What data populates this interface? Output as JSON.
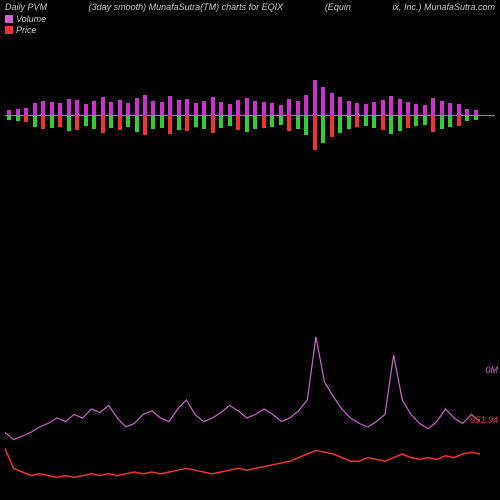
{
  "header": {
    "left": "Daily PVM",
    "center_a": "(3day smooth) MunafaSutra(TM) charts for EQIX",
    "center_b": "(Equin",
    "right": "ix, Inc.) MunafaSutra.com"
  },
  "legend": {
    "volume": {
      "label": "Volume",
      "color": "#cc66cc"
    },
    "price": {
      "label": "Price",
      "color": "#ee3333"
    }
  },
  "colors": {
    "bg": "#000000",
    "axis": "#888888",
    "vol_bar": "#cc33cc",
    "up_bar": "#33cc33",
    "down_bar": "#ee3333",
    "vol_line": "#cc66cc",
    "price_line": "#ee3333"
  },
  "labels": {
    "vol_zero": "0M",
    "price_current": "951.94"
  },
  "volume_chart": {
    "max": 45,
    "bars": [
      {
        "v": 5,
        "d": 1
      },
      {
        "v": 6,
        "d": 1
      },
      {
        "v": 7,
        "d": -1
      },
      {
        "v": 12,
        "d": 1
      },
      {
        "v": 14,
        "d": -1
      },
      {
        "v": 13,
        "d": 1
      },
      {
        "v": 12,
        "d": -1
      },
      {
        "v": 16,
        "d": 1
      },
      {
        "v": 15,
        "d": -1
      },
      {
        "v": 11,
        "d": 1
      },
      {
        "v": 14,
        "d": 1
      },
      {
        "v": 18,
        "d": -1
      },
      {
        "v": 13,
        "d": 1
      },
      {
        "v": 15,
        "d": -1
      },
      {
        "v": 12,
        "d": 1
      },
      {
        "v": 17,
        "d": 1
      },
      {
        "v": 20,
        "d": -1
      },
      {
        "v": 14,
        "d": 1
      },
      {
        "v": 13,
        "d": 1
      },
      {
        "v": 19,
        "d": -1
      },
      {
        "v": 15,
        "d": 1
      },
      {
        "v": 16,
        "d": -1
      },
      {
        "v": 12,
        "d": 1
      },
      {
        "v": 14,
        "d": 1
      },
      {
        "v": 18,
        "d": -1
      },
      {
        "v": 13,
        "d": 1
      },
      {
        "v": 11,
        "d": 1
      },
      {
        "v": 15,
        "d": -1
      },
      {
        "v": 17,
        "d": 1
      },
      {
        "v": 14,
        "d": 1
      },
      {
        "v": 13,
        "d": -1
      },
      {
        "v": 12,
        "d": 1
      },
      {
        "v": 10,
        "d": 1
      },
      {
        "v": 16,
        "d": -1
      },
      {
        "v": 14,
        "d": 1
      },
      {
        "v": 20,
        "d": 1
      },
      {
        "v": 35,
        "d": -1
      },
      {
        "v": 28,
        "d": 1
      },
      {
        "v": 22,
        "d": -1
      },
      {
        "v": 18,
        "d": 1
      },
      {
        "v": 14,
        "d": 1
      },
      {
        "v": 12,
        "d": -1
      },
      {
        "v": 11,
        "d": 1
      },
      {
        "v": 13,
        "d": 1
      },
      {
        "v": 15,
        "d": -1
      },
      {
        "v": 19,
        "d": 1
      },
      {
        "v": 16,
        "d": 1
      },
      {
        "v": 13,
        "d": -1
      },
      {
        "v": 11,
        "d": 1
      },
      {
        "v": 10,
        "d": 1
      },
      {
        "v": 17,
        "d": -1
      },
      {
        "v": 14,
        "d": 1
      },
      {
        "v": 12,
        "d": 1
      },
      {
        "v": 11,
        "d": -1
      },
      {
        "v": 6,
        "d": 1
      },
      {
        "v": 5,
        "d": 1
      }
    ]
  },
  "volume_line": {
    "ymin": 0,
    "ymax": 100,
    "points": [
      68,
      72,
      70,
      68,
      65,
      63,
      60,
      62,
      58,
      60,
      55,
      57,
      53,
      60,
      65,
      63,
      58,
      56,
      60,
      62,
      55,
      50,
      58,
      62,
      60,
      57,
      53,
      56,
      60,
      58,
      55,
      58,
      62,
      60,
      56,
      50,
      15,
      40,
      48,
      55,
      60,
      63,
      65,
      62,
      58,
      25,
      50,
      58,
      63,
      66,
      62,
      55,
      60,
      63,
      58,
      62
    ]
  },
  "price_line": {
    "ymin": 0,
    "ymax": 100,
    "points": [
      77,
      88,
      90,
      92,
      91,
      92,
      93,
      92,
      93,
      92,
      91,
      92,
      91,
      92,
      91,
      90,
      91,
      90,
      91,
      90,
      89,
      88,
      89,
      90,
      91,
      90,
      89,
      88,
      89,
      88,
      87,
      86,
      85,
      84,
      82,
      80,
      78,
      79,
      80,
      82,
      84,
      84,
      82,
      83,
      84,
      82,
      80,
      82,
      83,
      82,
      83,
      81,
      82,
      80,
      79,
      80
    ]
  }
}
